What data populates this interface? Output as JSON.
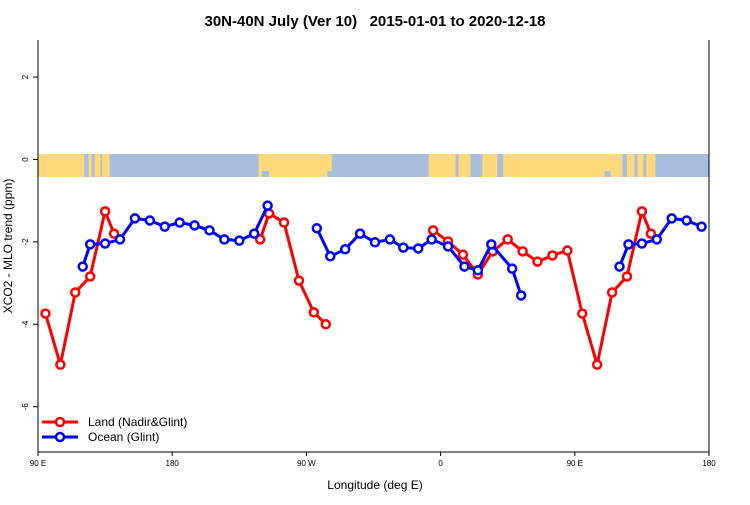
{
  "chart_data": {
    "type": "line",
    "title": "30N-40N July (Ver 10)   2015-01-01 to 2020-12-18",
    "xlabel": "Longitude (deg E)",
    "ylabel": "XCO2 - MLO trend (ppm)",
    "xlim": [
      90,
      540
    ],
    "ylim": [
      -7.1,
      2.9
    ],
    "x_ticks": [
      {
        "value": 90,
        "label": "90 E"
      },
      {
        "value": 180,
        "label": "180"
      },
      {
        "value": 270,
        "label": "90 W"
      },
      {
        "value": 360,
        "label": "0"
      },
      {
        "value": 450,
        "label": "90 E"
      },
      {
        "value": 540,
        "label": "180"
      }
    ],
    "y_ticks": [
      {
        "value": 2,
        "label": "2"
      },
      {
        "value": 0,
        "label": "0"
      },
      {
        "value": -2,
        "label": "-2"
      },
      {
        "value": -4,
        "label": "-4"
      },
      {
        "value": -6,
        "label": "-6"
      }
    ],
    "grid": false,
    "legend_position": "bottom-left",
    "series": [
      {
        "name": "Land (Nadir&Glint)",
        "color": "#FF0000",
        "points": [
          [
            95,
            -3.74
          ],
          [
            105,
            -4.98
          ],
          [
            115,
            -3.23
          ],
          [
            125,
            -2.84
          ],
          [
            135,
            -1.26
          ],
          [
            141,
            -1.8
          ],
          null,
          [
            239,
            -1.94
          ],
          [
            245,
            -1.31
          ],
          [
            255,
            -1.53
          ],
          [
            265,
            -2.94
          ],
          [
            275,
            -3.71
          ],
          [
            283,
            -4.0
          ],
          null,
          [
            355,
            -1.72
          ],
          [
            365,
            -1.99
          ],
          [
            375,
            -2.31
          ],
          [
            385,
            -2.79
          ],
          [
            395,
            -2.23
          ],
          [
            405,
            -1.94
          ],
          [
            415,
            -2.23
          ],
          [
            425,
            -2.48
          ],
          [
            435,
            -2.33
          ],
          [
            445,
            -2.21
          ],
          [
            455,
            -3.74
          ],
          [
            465,
            -4.98
          ],
          [
            475,
            -3.23
          ],
          [
            485,
            -2.84
          ],
          [
            495,
            -1.26
          ],
          [
            501,
            -1.8
          ]
        ]
      },
      {
        "name": "Ocean (Glint)",
        "color": "#0000FF",
        "points": [
          [
            120,
            -2.6
          ],
          [
            125,
            -2.06
          ],
          [
            135,
            -2.04
          ],
          [
            145,
            -1.94
          ],
          [
            155,
            -1.43
          ],
          [
            165,
            -1.48
          ],
          [
            175,
            -1.63
          ],
          [
            185,
            -1.53
          ],
          [
            195,
            -1.6
          ],
          [
            205,
            -1.72
          ],
          [
            215,
            -1.94
          ],
          [
            225,
            -1.97
          ],
          [
            235,
            -1.8
          ],
          [
            244,
            -1.12
          ],
          null,
          [
            277,
            -1.67
          ],
          [
            286,
            -2.35
          ],
          [
            296,
            -2.18
          ],
          [
            306,
            -1.8
          ],
          [
            316,
            -2.01
          ],
          [
            326,
            -1.94
          ],
          [
            335,
            -2.14
          ],
          [
            345,
            -2.16
          ],
          [
            354,
            -1.94
          ],
          [
            365,
            -2.11
          ],
          [
            376,
            -2.6
          ],
          [
            385,
            -2.69
          ],
          [
            394,
            -2.06
          ],
          [
            408,
            -2.65
          ],
          [
            414,
            -3.3
          ],
          null,
          [
            480,
            -2.6
          ],
          [
            486,
            -2.06
          ],
          [
            495,
            -2.04
          ],
          [
            505,
            -1.94
          ],
          [
            515,
            -1.43
          ],
          [
            525,
            -1.48
          ],
          [
            535,
            -1.63
          ]
        ]
      }
    ]
  }
}
